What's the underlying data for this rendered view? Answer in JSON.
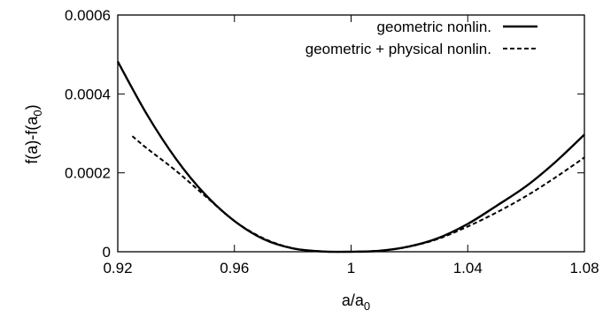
{
  "chart_data": {
    "type": "line",
    "xlabel": "a/a",
    "xlabel_sub": "0",
    "ylabel": "f(a)-f(a",
    "ylabel_sub": "0",
    "ylabel_end": ")",
    "xlim": [
      0.92,
      1.08
    ],
    "ylim": [
      0,
      0.0006
    ],
    "x_ticks": [
      0.92,
      0.96,
      1.0,
      1.04,
      1.08
    ],
    "x_tick_labels": [
      "0.92",
      "0.96",
      "1",
      "1.04",
      "1.08"
    ],
    "y_ticks": [
      0,
      0.0002,
      0.0004,
      0.0006
    ],
    "y_tick_labels": [
      "0",
      "0.0002",
      "0.0004",
      "0.0006"
    ],
    "grid": false,
    "legend_position": "top-right",
    "series": [
      {
        "name": "geometric nonlin.",
        "style": "solid",
        "color": "#000000",
        "x": [
          0.92,
          0.93,
          0.94,
          0.95,
          0.96,
          0.97,
          0.98,
          0.99,
          1.0,
          1.01,
          1.02,
          1.03,
          1.04,
          1.05,
          1.06,
          1.07,
          1.08
        ],
        "y": [
          0.000482,
          0.000348,
          0.000235,
          0.000145,
          7.8e-05,
          3.2e-05,
          8.5e-06,
          8e-07,
          0.0,
          2.5e-06,
          1.35e-05,
          3.5e-05,
          7.05e-05,
          0.000117,
          0.000166,
          0.000227,
          0.000297
        ]
      },
      {
        "name": "geometric + physical nonlin.",
        "style": "dashed",
        "color": "#000000",
        "x": [
          0.925,
          0.93,
          0.94,
          0.95,
          0.96,
          0.97,
          0.98,
          0.99,
          1.0,
          1.01,
          1.02,
          1.03,
          1.04,
          1.05,
          1.06,
          1.07,
          1.08
        ],
        "y": [
          0.000293,
          0.000262,
          0.000205,
          0.000141,
          7.8e-05,
          3.4e-05,
          9e-06,
          9e-07,
          0.0,
          2.5e-06,
          1.3e-05,
          3.3e-05,
          6.4e-05,
          0.0001,
          0.000141,
          0.000188,
          0.000239
        ]
      }
    ]
  }
}
